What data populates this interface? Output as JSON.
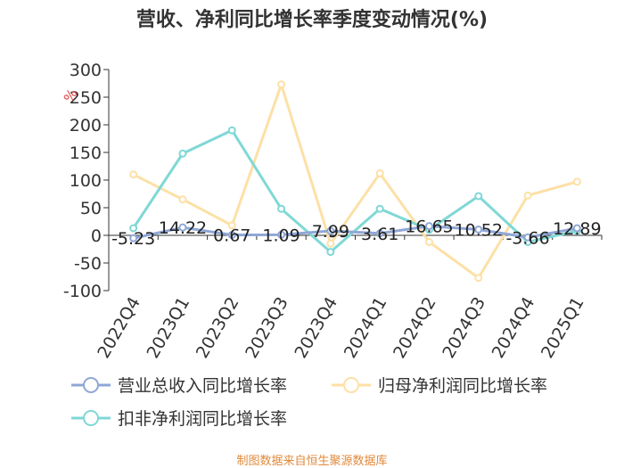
{
  "chart_data": {
    "type": "line",
    "title": "营收、净利同比增长率季度变动情况(%)",
    "ylabel": "%",
    "categories": [
      "2022Q4",
      "2023Q1",
      "2023Q2",
      "2023Q3",
      "2023Q4",
      "2024Q1",
      "2024Q2",
      "2024Q3",
      "2024Q4",
      "2025Q1"
    ],
    "ylim": [
      -100,
      300
    ],
    "yticks": [
      300,
      250,
      200,
      150,
      100,
      50,
      0,
      -50,
      -100
    ],
    "grid": false,
    "legend_position": "bottom",
    "series": [
      {
        "name": "营业总收入同比增长率",
        "color": "#8fa7d6",
        "values": [
          -5.23,
          14.22,
          0.67,
          1.09,
          7.99,
          3.61,
          16.65,
          10.52,
          -3.66,
          12.89
        ],
        "labels": [
          "-5.23",
          "14.22",
          "0.67",
          "1.09",
          "7.99",
          "3.61",
          "16.65",
          "10.52",
          "-3.66",
          "12.89"
        ]
      },
      {
        "name": "归母净利润同比增长率",
        "color": "#fde0a6",
        "values": [
          110,
          65,
          18,
          273,
          -15,
          112,
          -12,
          -77,
          72,
          97
        ]
      },
      {
        "name": "扣非净利润同比增长率",
        "color": "#7fd8d6",
        "values": [
          13,
          148,
          190,
          48,
          -30,
          48,
          10,
          71,
          -12,
          8
        ]
      }
    ]
  },
  "footer": "制图数据来自恒生聚源数据库"
}
